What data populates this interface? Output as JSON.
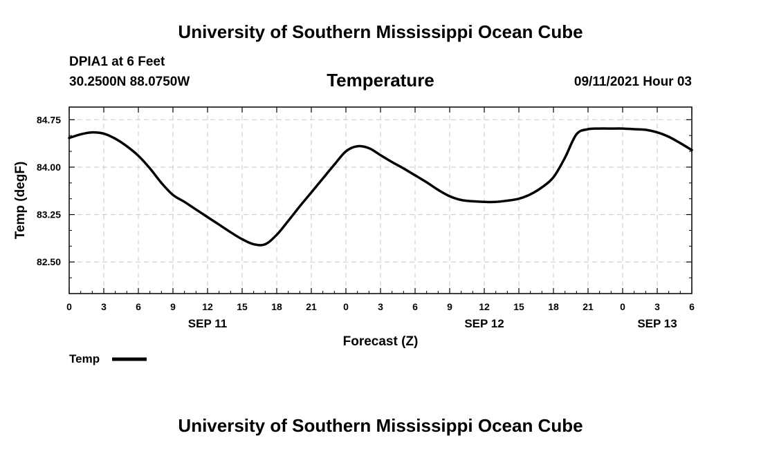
{
  "header": {
    "title": "University of Southern Mississippi Ocean Cube",
    "station": "DPIA1 at 6 Feet",
    "coords": "30.2500N  88.0750W",
    "variable": "Temperature",
    "timestamp": "09/11/2021 Hour 03"
  },
  "footer": {
    "title": "University of Southern Mississippi Ocean Cube"
  },
  "chart_data": {
    "type": "line",
    "title": "Temperature",
    "xlabel": "Forecast (Z)",
    "ylabel": "Temp (degF)",
    "xlim": [
      0,
      54
    ],
    "ylim": [
      82.0,
      84.95
    ],
    "x_ticks": [
      0,
      3,
      6,
      9,
      12,
      15,
      18,
      21,
      24,
      27,
      30,
      33,
      36,
      39,
      42,
      45,
      48,
      51,
      54
    ],
    "x_tick_labels": [
      "0",
      "3",
      "6",
      "9",
      "12",
      "15",
      "18",
      "21",
      "0",
      "3",
      "6",
      "9",
      "12",
      "15",
      "18",
      "21",
      "0",
      "3",
      "6"
    ],
    "date_labels": [
      {
        "x": 12,
        "label": "SEP 11"
      },
      {
        "x": 36,
        "label": "SEP 12"
      },
      {
        "x": 51,
        "label": "SEP 13"
      }
    ],
    "y_ticks": [
      82.5,
      83.25,
      84.0,
      84.75
    ],
    "y_tick_labels": [
      "82.50",
      "83.25",
      "84.00",
      "84.75"
    ],
    "grid": true,
    "legend": "bottom-left",
    "series": [
      {
        "name": "Temp",
        "color": "#000000",
        "x": [
          0,
          1,
          2,
          3,
          4,
          5,
          6,
          7,
          8,
          9,
          10,
          11,
          12,
          13,
          14,
          15,
          16,
          17,
          18,
          19,
          20,
          21,
          22,
          23,
          24,
          25,
          26,
          27,
          28,
          29,
          30,
          31,
          32,
          33,
          34,
          35,
          36,
          37,
          38,
          39,
          40,
          41,
          42,
          43,
          44,
          45,
          46,
          47,
          48,
          49,
          50,
          51,
          52,
          53,
          54
        ],
        "values": [
          84.46,
          84.52,
          84.55,
          84.53,
          84.45,
          84.33,
          84.18,
          83.98,
          83.75,
          83.56,
          83.45,
          83.33,
          83.21,
          83.09,
          82.97,
          82.86,
          82.78,
          82.78,
          82.93,
          83.15,
          83.38,
          83.6,
          83.82,
          84.04,
          84.25,
          84.33,
          84.3,
          84.19,
          84.08,
          83.98,
          83.87,
          83.76,
          83.64,
          83.54,
          83.48,
          83.46,
          83.45,
          83.45,
          83.47,
          83.5,
          83.57,
          83.68,
          83.84,
          84.15,
          84.52,
          84.6,
          84.61,
          84.61,
          84.61,
          84.6,
          84.59,
          84.55,
          84.48,
          84.38,
          84.27
        ]
      }
    ]
  }
}
